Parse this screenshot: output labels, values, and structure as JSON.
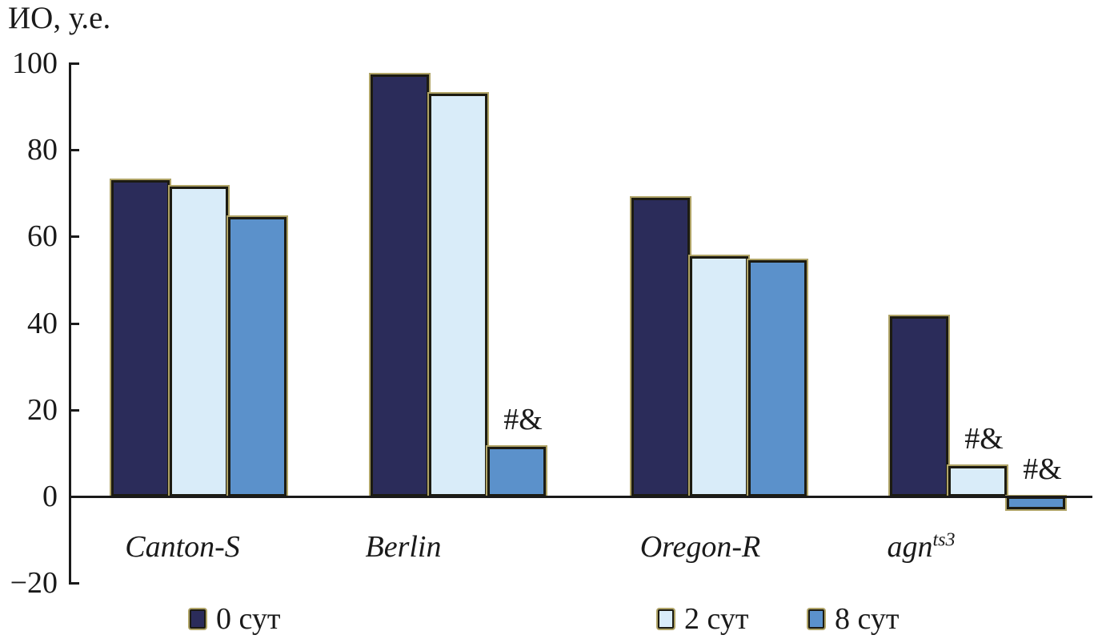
{
  "chart_data": {
    "type": "bar",
    "title": "",
    "ylabel": "ИО, у.е.",
    "xlabel": "",
    "categories": [
      "Canton-S",
      "Berlin",
      "Oregon-R",
      "agn^{ts3}"
    ],
    "series": [
      {
        "name": "0 сут",
        "color": "#2b2c5a",
        "values": [
          73,
          97.5,
          69,
          41.5
        ]
      },
      {
        "name": "2 сут",
        "color": "#d9ecf9",
        "values": [
          71.5,
          93,
          55.5,
          7
        ]
      },
      {
        "name": "8 сут",
        "color": "#5b91cb",
        "values": [
          64.5,
          11.5,
          54.5,
          -3
        ]
      }
    ],
    "ylim": [
      -20,
      100
    ],
    "yticks": [
      100,
      80,
      60,
      40,
      20,
      0,
      -20
    ],
    "grid": false,
    "legend_position": "bottom",
    "annotations": [
      {
        "category_index": 1,
        "series_index": 2,
        "text": "#&"
      },
      {
        "category_index": 3,
        "series_index": 1,
        "text": "#&"
      },
      {
        "category_index": 3,
        "series_index": 2,
        "text": "#&"
      }
    ],
    "axis_color": "#1a1a1a",
    "bar_border_color": "#1c1b12",
    "bar_outer_edge_color": "#b0a467"
  }
}
